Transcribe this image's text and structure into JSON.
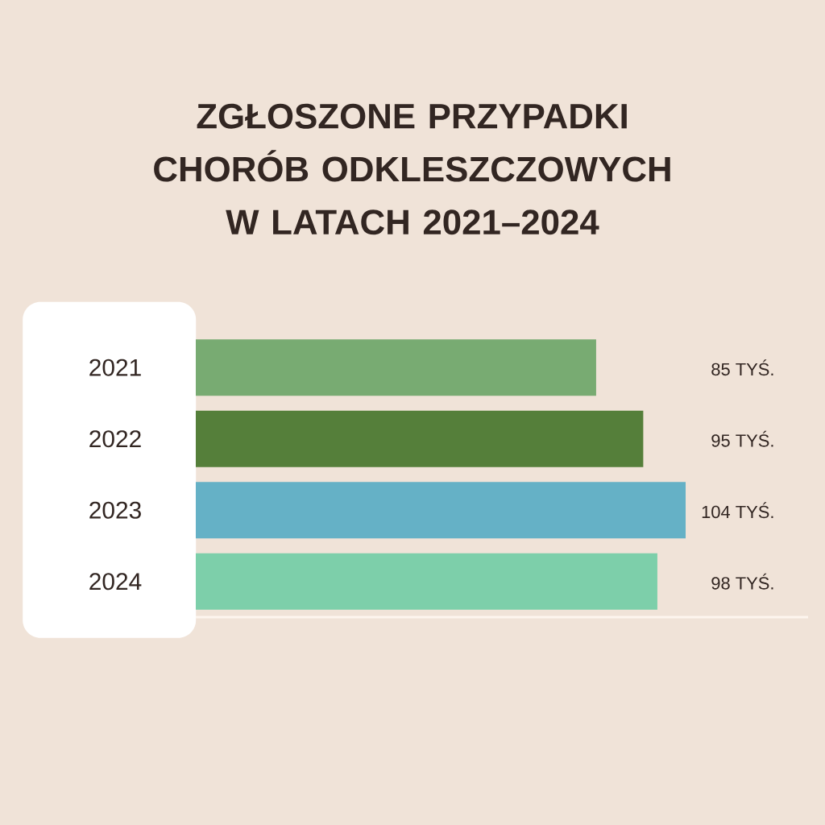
{
  "chart_data": {
    "type": "bar",
    "orientation": "horizontal",
    "title": "ZGŁOSZONE PRZYPADKI CHORÓB ODKLESZCZOWYCH W LATACH 2021–2024",
    "categories": [
      "2021",
      "2022",
      "2023",
      "2024"
    ],
    "values": [
      85,
      95,
      104,
      98
    ],
    "colors": [
      "#78ab72",
      "#557f3a",
      "#65b1c6",
      "#7dcfaa"
    ],
    "value_labels": [
      "85 TYŚ.",
      "95 TYŚ.",
      "104 TYŚ.",
      "98 TYŚ."
    ],
    "xlim": [
      0,
      130
    ],
    "tick_labels": "y"
  }
}
